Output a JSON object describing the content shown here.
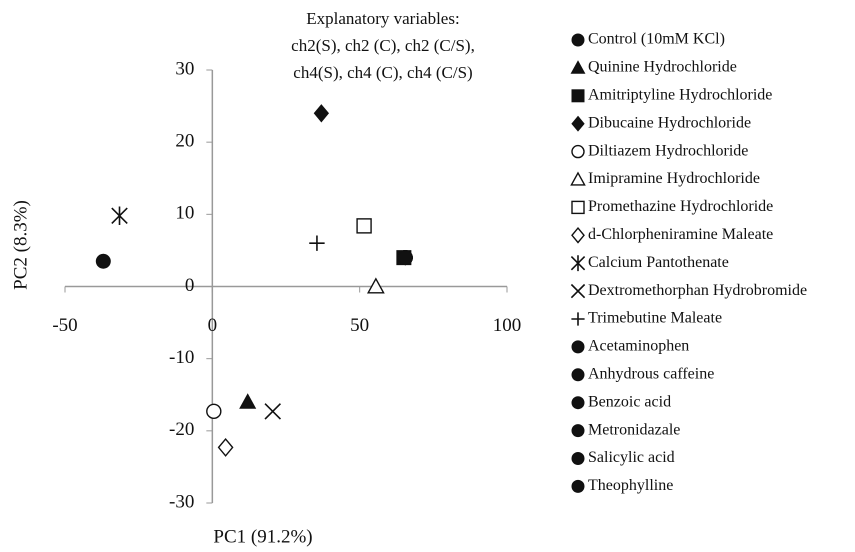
{
  "chart_data": {
    "type": "scatter",
    "annotation": [
      "Explanatory variables:",
      "ch2(S), ch2 (C), ch2 (C/S),",
      "ch4(S), ch4 (C), ch4 (C/S)"
    ],
    "x_label": "PC1 (91.2%)",
    "y_label": "PC2 (8.3%)",
    "xlim": [
      -50,
      100
    ],
    "xticks": [
      -50,
      0,
      50,
      100
    ],
    "ylim": [
      -30,
      30
    ],
    "yticks": [
      -30,
      -20,
      -10,
      0,
      10,
      20,
      30
    ],
    "series": [
      {
        "name": "Control (10mM KCl)",
        "marker": "circle-filled",
        "color": "#111111",
        "x": [
          -37
        ],
        "values": [
          3.5
        ]
      },
      {
        "name": "Quinine Hydrochloride",
        "marker": "triangle-filled",
        "color": "#111111",
        "x": [
          12
        ],
        "values": [
          -16
        ]
      },
      {
        "name": "Amitriptyline Hydrochloride",
        "marker": "square-filled",
        "color": "#111111",
        "x": [
          65
        ],
        "values": [
          4
        ]
      },
      {
        "name": "Dibucaine Hydrochloride",
        "marker": "diamond-filled",
        "color": "#111111",
        "x": [
          37
        ],
        "values": [
          24
        ]
      },
      {
        "name": "Diltiazem Hydrochloride",
        "marker": "circle-open",
        "color": "#111111",
        "x": [
          0.5
        ],
        "values": [
          -17.3
        ]
      },
      {
        "name": "Imipramine Hydrochloride",
        "marker": "triangle-open",
        "color": "#111111",
        "x": [
          55.5
        ],
        "values": [
          0
        ]
      },
      {
        "name": "Promethazine Hydrochloride",
        "marker": "square-open",
        "color": "#111111",
        "x": [
          51.5
        ],
        "values": [
          8.4
        ]
      },
      {
        "name": "d-Chlorpheniramine Maleate",
        "marker": "diamond-open",
        "color": "#111111",
        "x": [
          4.5
        ],
        "values": [
          -22.3
        ]
      },
      {
        "name": "Calcium Pantothenate",
        "marker": "asterisk",
        "color": "#111111",
        "x": [
          -31.5
        ],
        "values": [
          9.8
        ]
      },
      {
        "name": "Dextromethorphan Hydrobromide",
        "marker": "x",
        "color": "#111111",
        "x": [
          20.5
        ],
        "values": [
          -17.3
        ]
      },
      {
        "name": "Trimebutine Maleate",
        "marker": "plus",
        "color": "#111111",
        "x": [
          35.5
        ],
        "values": [
          6
        ]
      },
      {
        "name": "Acetaminophen",
        "marker": "circle-filled",
        "color": "#111111",
        "x": [
          65.5
        ],
        "values": [
          4
        ]
      },
      {
        "name": "Anhydrous caffeine",
        "marker": "circle-filled",
        "color": "#111111",
        "x": [
          65.5
        ],
        "values": [
          4
        ]
      },
      {
        "name": "Benzoic acid",
        "marker": "circle-filled",
        "color": "#111111",
        "x": [
          65.5
        ],
        "values": [
          4
        ]
      },
      {
        "name": "Metronidazale",
        "marker": "circle-filled",
        "color": "#111111",
        "x": [
          65.5
        ],
        "values": [
          4
        ]
      },
      {
        "name": "Salicylic acid",
        "marker": "circle-filled",
        "color": "#111111",
        "x": [
          65.5
        ],
        "values": [
          4
        ]
      },
      {
        "name": "Theophylline",
        "marker": "circle-filled",
        "color": "#111111",
        "x": [
          65.5
        ],
        "values": [
          4
        ]
      }
    ]
  }
}
